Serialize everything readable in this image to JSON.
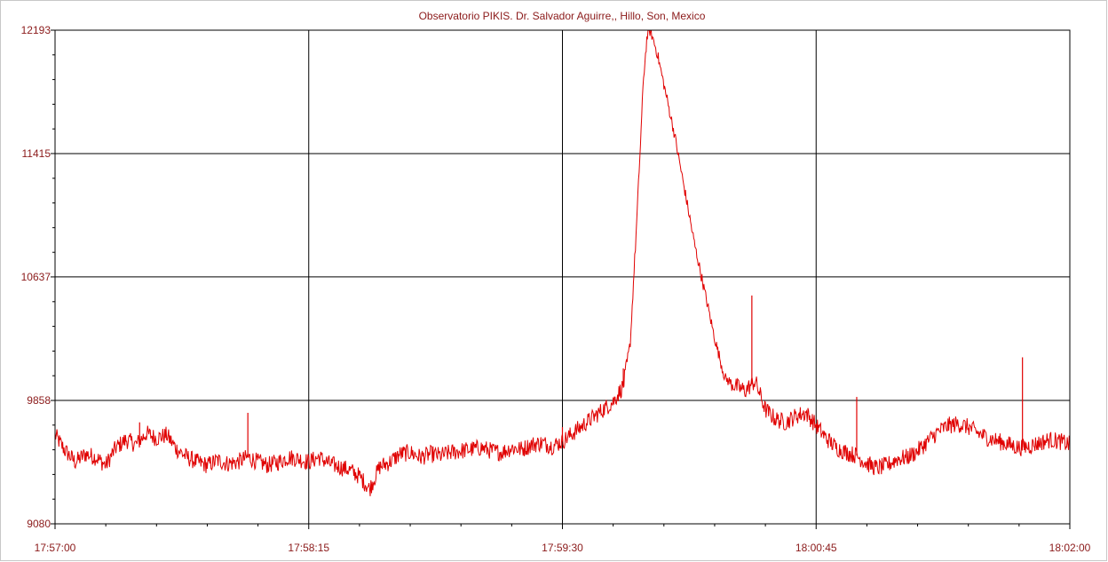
{
  "chart_data": {
    "type": "line",
    "title": "Observatorio PIKIS. Dr. Salvador Aguirre,, Hillo, Son, Mexico",
    "xlabel": "",
    "ylabel": "",
    "x_tick_labels": [
      "17:57:00",
      "17:58:15",
      "17:59:30",
      "18:00:45",
      "18:02:00"
    ],
    "y_tick_labels": [
      "12193",
      "11415",
      "10637",
      "9858",
      "9080"
    ],
    "y_ticks": [
      12193,
      11415,
      10637,
      9858,
      9080
    ],
    "ylim": [
      9080,
      12193
    ],
    "x_range_seconds": [
      0,
      300
    ],
    "grid": true,
    "line_color": "#e00000",
    "series": [
      {
        "values": [
          [
            0,
            9640
          ],
          [
            3,
            9540
          ],
          [
            6,
            9470
          ],
          [
            9,
            9520
          ],
          [
            12,
            9500
          ],
          [
            15,
            9450
          ],
          [
            18,
            9560
          ],
          [
            21,
            9610
          ],
          [
            24,
            9580
          ],
          [
            27,
            9650
          ],
          [
            30,
            9620
          ],
          [
            33,
            9640
          ],
          [
            36,
            9550
          ],
          [
            39,
            9500
          ],
          [
            42,
            9470
          ],
          [
            45,
            9450
          ],
          [
            48,
            9480
          ],
          [
            51,
            9460
          ],
          [
            54,
            9470
          ],
          [
            57,
            9500
          ],
          [
            60,
            9470
          ],
          [
            63,
            9450
          ],
          [
            66,
            9470
          ],
          [
            69,
            9500
          ],
          [
            72,
            9490
          ],
          [
            75,
            9470
          ],
          [
            78,
            9500
          ],
          [
            81,
            9460
          ],
          [
            84,
            9440
          ],
          [
            87,
            9420
          ],
          [
            90,
            9380
          ],
          [
            93,
            9300
          ],
          [
            96,
            9440
          ],
          [
            99,
            9470
          ],
          [
            102,
            9520
          ],
          [
            105,
            9530
          ],
          [
            108,
            9500
          ],
          [
            111,
            9520
          ],
          [
            114,
            9510
          ],
          [
            117,
            9530
          ],
          [
            120,
            9540
          ],
          [
            123,
            9550
          ],
          [
            126,
            9560
          ],
          [
            129,
            9540
          ],
          [
            132,
            9530
          ],
          [
            135,
            9560
          ],
          [
            138,
            9550
          ],
          [
            141,
            9580
          ],
          [
            144,
            9590
          ],
          [
            147,
            9570
          ],
          [
            150,
            9600
          ],
          [
            153,
            9650
          ],
          [
            156,
            9700
          ],
          [
            159,
            9750
          ],
          [
            162,
            9800
          ],
          [
            165,
            9850
          ],
          [
            168,
            9950
          ],
          [
            170,
            10200
          ],
          [
            172,
            11000
          ],
          [
            174,
            11900
          ],
          [
            175,
            12150
          ],
          [
            176,
            12193
          ],
          [
            178,
            12050
          ],
          [
            180,
            11850
          ],
          [
            183,
            11550
          ],
          [
            186,
            11200
          ],
          [
            189,
            10850
          ],
          [
            192,
            10550
          ],
          [
            195,
            10250
          ],
          [
            198,
            10000
          ],
          [
            201,
            9950
          ],
          [
            204,
            9920
          ],
          [
            207,
            9980
          ],
          [
            210,
            9800
          ],
          [
            213,
            9740
          ],
          [
            216,
            9720
          ],
          [
            219,
            9760
          ],
          [
            222,
            9780
          ],
          [
            225,
            9700
          ],
          [
            228,
            9620
          ],
          [
            231,
            9560
          ],
          [
            234,
            9530
          ],
          [
            237,
            9510
          ],
          [
            240,
            9460
          ],
          [
            243,
            9430
          ],
          [
            246,
            9450
          ],
          [
            249,
            9490
          ],
          [
            252,
            9500
          ],
          [
            255,
            9540
          ],
          [
            258,
            9600
          ],
          [
            261,
            9660
          ],
          [
            264,
            9700
          ],
          [
            267,
            9710
          ],
          [
            270,
            9690
          ],
          [
            273,
            9650
          ],
          [
            276,
            9620
          ],
          [
            279,
            9600
          ],
          [
            282,
            9580
          ],
          [
            285,
            9560
          ],
          [
            288,
            9570
          ],
          [
            291,
            9590
          ],
          [
            294,
            9610
          ],
          [
            297,
            9600
          ],
          [
            300,
            9580
          ]
        ]
      },
      {
        "values": [
          [
            0,
            9620
          ],
          [
            2,
            9590
          ]
        ]
      }
    ],
    "spikes": [
      {
        "x": 25,
        "y": 9720
      },
      {
        "x": 57,
        "y": 9780
      },
      {
        "x": 150,
        "y": 9690
      },
      {
        "x": 168,
        "y": 10060
      },
      {
        "x": 206,
        "y": 10520
      },
      {
        "x": 237,
        "y": 9880
      },
      {
        "x": 286,
        "y": 10130
      }
    ]
  }
}
